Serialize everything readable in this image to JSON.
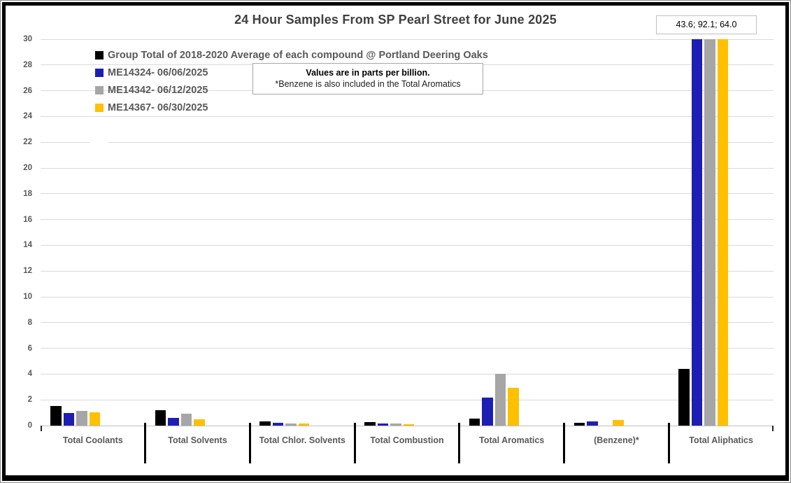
{
  "chart_data": {
    "type": "bar",
    "title": "24 Hour Samples From SP Pearl Street for June 2025",
    "categories": [
      "Total Coolants",
      "Total Solvents",
      "Total Chlor. Solvents",
      "Total Combustion",
      "Total Aromatics",
      "(Benzene)*",
      "Total Aliphatics"
    ],
    "series": [
      {
        "name": "Group Total of 2018-2020 Average of each compound @ Portland Deering Oaks",
        "color": "#000000",
        "values": [
          1.5,
          1.2,
          0.35,
          0.28,
          0.55,
          0.2,
          4.4
        ]
      },
      {
        "name": "ME14324- 06/06/2025",
        "color": "#1e1eb4",
        "values": [
          1.0,
          0.6,
          0.2,
          0.18,
          2.2,
          0.35,
          43.6
        ]
      },
      {
        "name": "ME14342- 06/12/2025",
        "color": "#a6a6a6",
        "values": [
          1.15,
          0.9,
          0.18,
          0.15,
          4.0,
          0,
          92.1
        ]
      },
      {
        "name": "ME14367- 06/30/2025",
        "color": "#ffc000",
        "values": [
          1.05,
          0.5,
          0.15,
          0.1,
          2.95,
          0.45,
          64.0
        ]
      }
    ],
    "ylabel": "",
    "xlabel": "",
    "ylim": [
      0,
      30
    ],
    "ytick_step": 2,
    "grid": true,
    "legend_position": "top-left",
    "bars_clipped_at_ymax": true
  },
  "annotation_box": {
    "line1": "Values are in parts per billion.",
    "line2": "*Benzene is also included in the Total Aromatics"
  },
  "value_callout": {
    "text": "43.6; 92.1; 64.0"
  },
  "colors": {
    "title_text": "#404040",
    "axis_text": "#595959",
    "gridline": "#d9d9d9",
    "axis_line": "#bfbfbf",
    "frame_border": "#000000"
  }
}
